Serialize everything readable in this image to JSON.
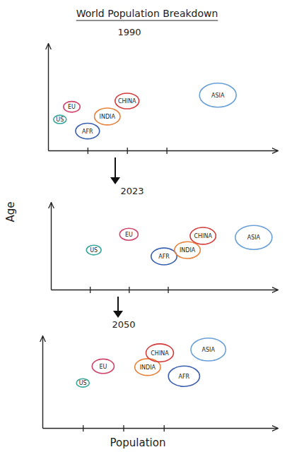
{
  "title": "World Population Breakdown",
  "ylabel": "Age",
  "xlabel": "Population",
  "chart_data": [
    {
      "type": "bubble",
      "title": "1990",
      "labels": [
        "US",
        "EU",
        "AFR",
        "INDIA",
        "CHINA",
        "ASIA"
      ],
      "x": [
        0.3,
        0.6,
        1.0,
        1.5,
        2.0,
        4.3
      ],
      "values": [
        3.2,
        4.5,
        2.0,
        3.5,
        5.1,
        5.7
      ],
      "sizes": [
        7,
        9,
        13,
        14,
        13,
        20
      ],
      "colors": [
        "#3aa89c",
        "#d0436a",
        "#3a5fb0",
        "#e8823a",
        "#d63b3b",
        "#6aa0d8"
      ],
      "xlim": [
        0,
        5.8
      ],
      "xticks": [
        1,
        2,
        3
      ],
      "ylim": [
        0,
        11
      ],
      "yticks": [],
      "tick_labels": false,
      "marker": "circle"
    },
    {
      "type": "bubble",
      "title": "2023",
      "labels": [
        "US",
        "EU",
        "AFR",
        "INDIA",
        "CHINA",
        "ASIA"
      ],
      "x": [
        1.1,
        2.0,
        2.9,
        3.5,
        3.9,
        5.2
      ],
      "values": [
        5.0,
        7.0,
        4.2,
        5.0,
        6.8,
        6.6
      ],
      "sizes": [
        8,
        10,
        14,
        14,
        14,
        20
      ],
      "colors": [
        "#3aa89c",
        "#d0436a",
        "#3a5fb0",
        "#e8823a",
        "#d63b3b",
        "#6aa0d8"
      ],
      "xlim": [
        0,
        5.8
      ],
      "xticks": [
        1,
        2,
        3
      ],
      "ylim": [
        0,
        11
      ],
      "yticks": [],
      "tick_labels": false,
      "marker": "circle"
    },
    {
      "type": "bubble",
      "title": "2050",
      "labels": [
        "US",
        "EU",
        "INDIA",
        "CHINA",
        "AFR",
        "ASIA"
      ],
      "x": [
        1.0,
        1.5,
        2.6,
        2.9,
        3.5,
        4.1
      ],
      "values": [
        5.4,
        7.4,
        7.3,
        9.0,
        6.2,
        9.4
      ],
      "sizes": [
        7,
        12,
        14,
        15,
        17,
        19
      ],
      "colors": [
        "#3aa89c",
        "#d0436a",
        "#e8823a",
        "#d63b3b",
        "#3a5fb0",
        "#6aa0d8"
      ],
      "xlim": [
        0,
        5.8
      ],
      "xticks": [
        1,
        2,
        3
      ],
      "ylim": [
        0,
        11
      ],
      "yticks": [],
      "tick_labels": false,
      "marker": "circle"
    }
  ]
}
